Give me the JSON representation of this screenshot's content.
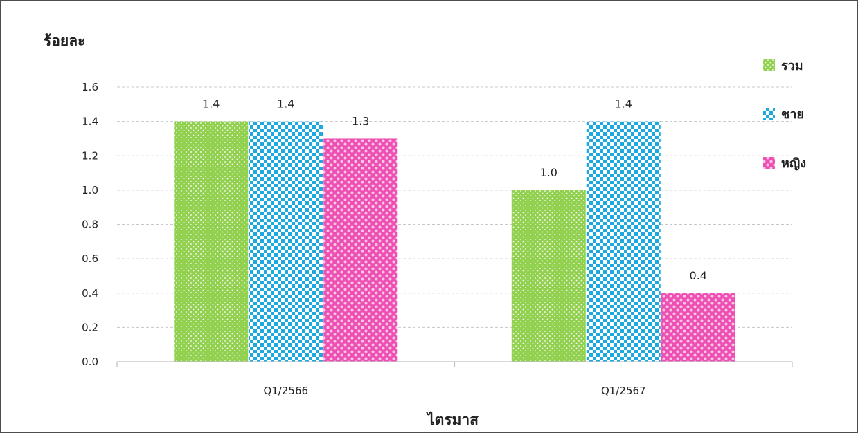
{
  "chart_data": {
    "type": "bar",
    "xlabel": "ไตรมาส",
    "ylabel": "ร้อยละ",
    "categories": [
      "Q1/2566",
      "Q1/2567"
    ],
    "series": [
      {
        "name": "รวม",
        "values": [
          1.4,
          1.0
        ],
        "color": "#92d050",
        "pattern": "dots"
      },
      {
        "name": "ชาย",
        "values": [
          1.4,
          1.4
        ],
        "color": "#1ca9e0",
        "pattern": "checker"
      },
      {
        "name": "หญิง",
        "values": [
          1.3,
          0.4
        ],
        "color": "#ee4fb2",
        "pattern": "polka"
      }
    ],
    "ylim": [
      0,
      1.6
    ],
    "yticks": [
      "0.0",
      "0.2",
      "0.4",
      "0.6",
      "0.8",
      "1.0",
      "1.2",
      "1.4",
      "1.6"
    ],
    "data_labels": [
      [
        "1.4",
        "1.0"
      ],
      [
        "1.4",
        "1.4"
      ],
      [
        "1.3",
        "0.4"
      ]
    ],
    "grid": "horizontal-dashed",
    "legend": "right"
  }
}
